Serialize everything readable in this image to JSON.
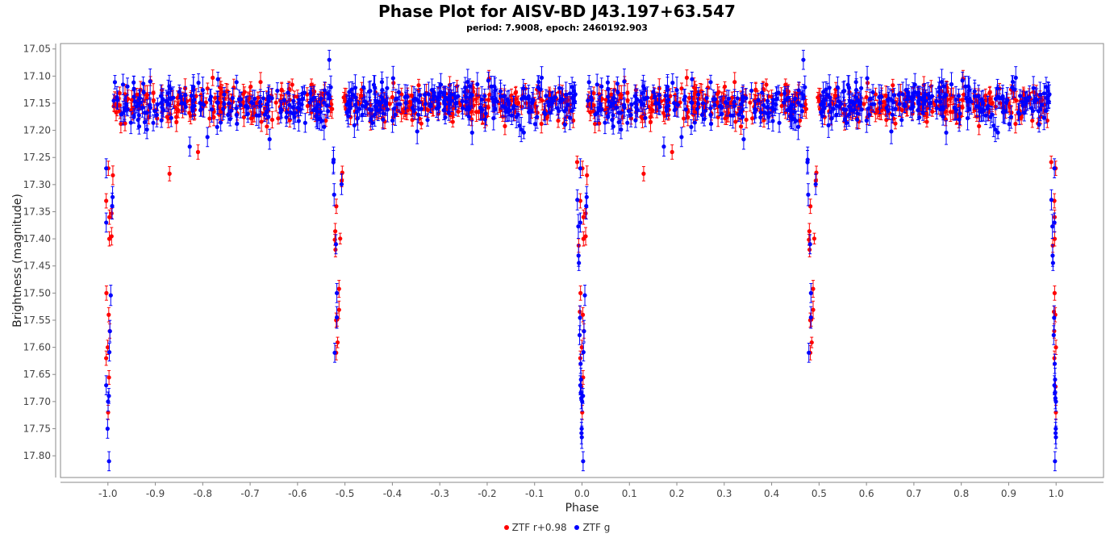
{
  "title": "Phase Plot for AISV-BD J43.197+63.547",
  "subtitle": "period: 7.9008, epoch: 2460192.903",
  "chart_data": {
    "type": "scatter",
    "title": "Phase Plot for AISV-BD J43.197+63.547",
    "subtitle": "period: 7.9008, epoch: 2460192.903",
    "xlabel": "Phase",
    "ylabel": "Brightness (magnitude)",
    "xlim": [
      -1.1,
      1.1
    ],
    "ylim": [
      17.84,
      17.04
    ],
    "y_inverted": true,
    "xticks": [
      "-1.0",
      "-0.9",
      "-0.8",
      "-0.7",
      "-0.6",
      "-0.5",
      "-0.4",
      "-0.3",
      "-0.2",
      "-0.1",
      "0.0",
      "0.1",
      "0.2",
      "0.3",
      "0.4",
      "0.5",
      "0.6",
      "0.7",
      "0.8",
      "0.9",
      "1.0"
    ],
    "yticks": [
      "17.05",
      "17.10",
      "17.15",
      "17.20",
      "17.25",
      "17.30",
      "17.35",
      "17.40",
      "17.45",
      "17.50",
      "17.55",
      "17.60",
      "17.65",
      "17.70",
      "17.75",
      "17.80"
    ],
    "error_bars": true,
    "grid": false,
    "legend_position": "bottom",
    "series": [
      {
        "name": "ZTF r+0.98",
        "color": "#ff0000",
        "baseline": 17.15,
        "scatter": 0.02,
        "n_points": 420,
        "typical_error": 0.012,
        "notable_points": [
          {
            "x": 0.0,
            "y": 17.27
          },
          {
            "x": 0.0,
            "y": 17.33
          },
          {
            "x": 0.0,
            "y": 17.36
          },
          {
            "x": 0.0,
            "y": 17.4
          },
          {
            "x": 0.0,
            "y": 17.5
          },
          {
            "x": 0.0,
            "y": 17.54
          },
          {
            "x": 0.0,
            "y": 17.57
          },
          {
            "x": 0.0,
            "y": 17.6
          },
          {
            "x": 0.0,
            "y": 17.62
          },
          {
            "x": 0.0,
            "y": 17.72
          },
          {
            "x": 0.48,
            "y": 17.34
          },
          {
            "x": 0.48,
            "y": 17.42
          },
          {
            "x": 0.48,
            "y": 17.55
          },
          {
            "x": 0.48,
            "y": 17.61
          },
          {
            "x": 0.13,
            "y": 17.28
          },
          {
            "x": 0.19,
            "y": 17.24
          }
        ]
      },
      {
        "name": "ZTF g",
        "color": "#0000ff",
        "baseline": 17.15,
        "scatter": 0.025,
        "n_points": 420,
        "typical_error": 0.016,
        "notable_points": [
          {
            "x": 0.0,
            "y": 17.27
          },
          {
            "x": 0.0,
            "y": 17.37
          },
          {
            "x": 0.0,
            "y": 17.67
          },
          {
            "x": 0.0,
            "y": 17.7
          },
          {
            "x": 0.0,
            "y": 17.75
          },
          {
            "x": 0.0,
            "y": 17.81
          },
          {
            "x": 0.48,
            "y": 17.41
          },
          {
            "x": 0.48,
            "y": 17.5
          },
          {
            "x": 0.48,
            "y": 17.61
          },
          {
            "x": 0.47,
            "y": 17.07
          },
          {
            "x": 0.17,
            "y": 17.23
          }
        ]
      }
    ]
  }
}
